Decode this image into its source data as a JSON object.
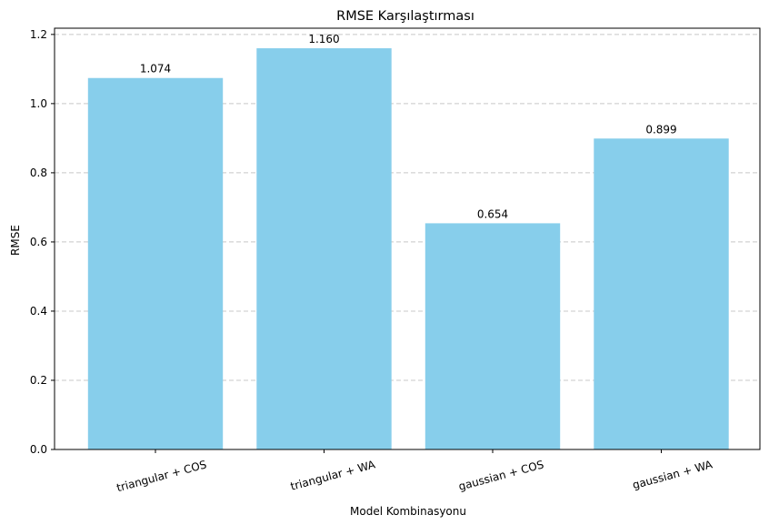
{
  "chart_data": {
    "type": "bar",
    "title": "RMSE Karşılaştırması",
    "xlabel": "Model Kombinasyonu",
    "ylabel": "RMSE",
    "categories": [
      "triangular + COS",
      "triangular + WA",
      "gaussian + COS",
      "gaussian + WA"
    ],
    "values": [
      1.074,
      1.16,
      0.654,
      0.899
    ],
    "value_labels": [
      "1.074",
      "1.160",
      "0.654",
      "0.899"
    ],
    "ylim": [
      0,
      1.218
    ],
    "yticks": [
      0.0,
      0.2,
      0.4,
      0.6,
      0.8,
      1.0,
      1.2
    ],
    "ytick_labels": [
      "0.0",
      "0.2",
      "0.4",
      "0.6",
      "0.8",
      "1.0",
      "1.2"
    ],
    "x_tick_rotation_deg": 15,
    "grid": "y-axis dashed",
    "bar_color": "#87ceeb",
    "grid_color": "#c8c8c8"
  }
}
